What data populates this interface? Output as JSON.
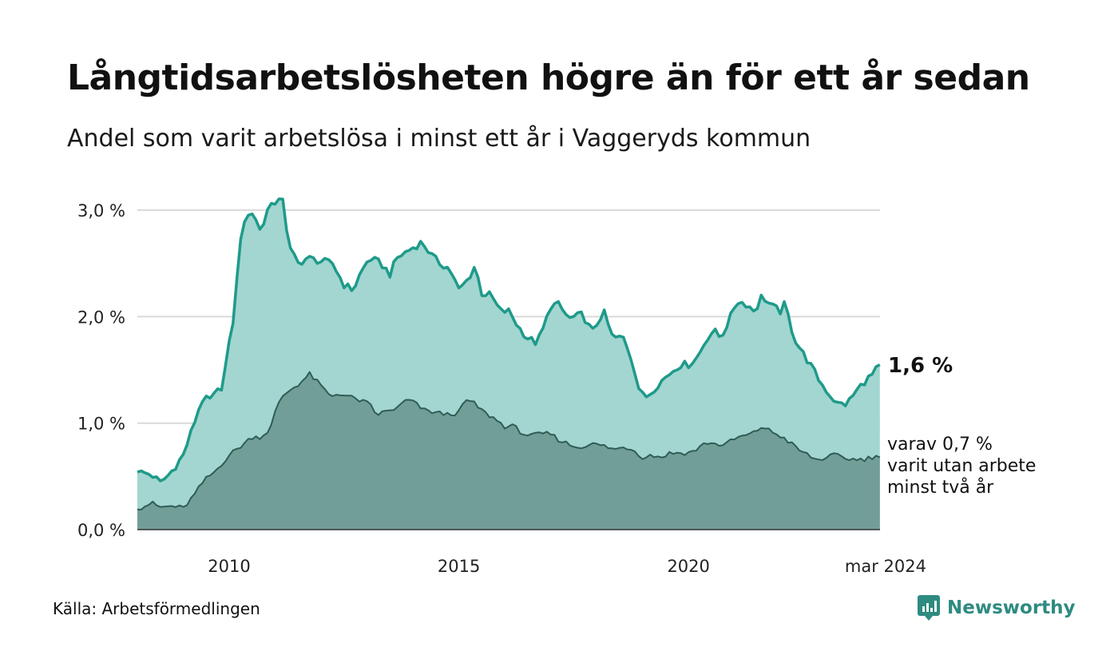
{
  "title": "Långtidsarbetslösheten högre än för ett år sedan",
  "subtitle": "Andel som varit arbetslösa i minst ett år i Vaggeryds kommun",
  "source": "Källa: Arbetsförmedlingen",
  "brand": "Newsworthy",
  "colors": {
    "primary_line": "#1f9a8a",
    "primary_fill": "#a3d6d0",
    "secondary_line": "#2f5c56",
    "secondary_fill": "#729e98",
    "grid": "#d9d9d9",
    "brand": "#2e8b80"
  },
  "chart_data": {
    "type": "area",
    "x_start": "2008-01",
    "x_end": "2024-03",
    "frequency": "monthly",
    "xlim": [
      2008.0,
      2024.17
    ],
    "ylim": [
      0,
      3.2
    ],
    "y_ticks": [
      {
        "value": 0,
        "label": "0,0 %"
      },
      {
        "value": 1,
        "label": "1,0 %"
      },
      {
        "value": 2,
        "label": "2,0 %"
      },
      {
        "value": 3,
        "label": "3,0 %"
      }
    ],
    "x_ticks": [
      {
        "value": 2010,
        "label": "2010"
      },
      {
        "value": 2015,
        "label": "2015"
      },
      {
        "value": 2020,
        "label": "2020"
      },
      {
        "value": 2024.17,
        "label": "mar 2024"
      }
    ],
    "grid": true,
    "annotations": {
      "end_value": "1,6 %",
      "note_lines": [
        "varav 0,7 %",
        "varit utan arbete",
        "minst två år"
      ]
    },
    "series": [
      {
        "name": "Minst ett år",
        "anchors": [
          [
            2008.0,
            0.54
          ],
          [
            2008.3,
            0.52
          ],
          [
            2008.5,
            0.44
          ],
          [
            2008.7,
            0.52
          ],
          [
            2009.0,
            0.7
          ],
          [
            2009.2,
            0.95
          ],
          [
            2009.4,
            1.22
          ],
          [
            2009.6,
            1.22
          ],
          [
            2009.85,
            1.35
          ],
          [
            2010.1,
            2.0
          ],
          [
            2010.25,
            2.75
          ],
          [
            2010.45,
            3.02
          ],
          [
            2010.7,
            2.8
          ],
          [
            2010.9,
            3.1
          ],
          [
            2011.05,
            3.02
          ],
          [
            2011.15,
            3.18
          ],
          [
            2011.3,
            2.65
          ],
          [
            2011.5,
            2.5
          ],
          [
            2011.7,
            2.55
          ],
          [
            2012.0,
            2.52
          ],
          [
            2012.25,
            2.5
          ],
          [
            2012.5,
            2.3
          ],
          [
            2012.7,
            2.25
          ],
          [
            2012.85,
            2.4
          ],
          [
            2013.05,
            2.55
          ],
          [
            2013.3,
            2.5
          ],
          [
            2013.5,
            2.4
          ],
          [
            2013.65,
            2.55
          ],
          [
            2014.0,
            2.65
          ],
          [
            2014.2,
            2.7
          ],
          [
            2014.45,
            2.55
          ],
          [
            2014.6,
            2.5
          ],
          [
            2014.8,
            2.45
          ],
          [
            2015.0,
            2.25
          ],
          [
            2015.2,
            2.35
          ],
          [
            2015.35,
            2.48
          ],
          [
            2015.5,
            2.22
          ],
          [
            2015.7,
            2.2
          ],
          [
            2015.9,
            2.05
          ],
          [
            2016.1,
            2.05
          ],
          [
            2016.3,
            1.9
          ],
          [
            2016.5,
            1.8
          ],
          [
            2016.7,
            1.75
          ],
          [
            2016.85,
            1.9
          ],
          [
            2017.0,
            2.1
          ],
          [
            2017.15,
            2.12
          ],
          [
            2017.4,
            1.98
          ],
          [
            2017.7,
            2.02
          ],
          [
            2017.9,
            1.85
          ],
          [
            2018.15,
            2.05
          ],
          [
            2018.35,
            1.8
          ],
          [
            2018.6,
            1.8
          ],
          [
            2018.8,
            1.55
          ],
          [
            2018.95,
            1.27
          ],
          [
            2019.1,
            1.25
          ],
          [
            2019.3,
            1.35
          ],
          [
            2019.55,
            1.45
          ],
          [
            2019.8,
            1.55
          ],
          [
            2020.0,
            1.55
          ],
          [
            2020.2,
            1.62
          ],
          [
            2020.4,
            1.8
          ],
          [
            2020.55,
            1.87
          ],
          [
            2020.7,
            1.8
          ],
          [
            2020.9,
            1.98
          ],
          [
            2021.05,
            2.15
          ],
          [
            2021.25,
            2.12
          ],
          [
            2021.45,
            2.05
          ],
          [
            2021.6,
            2.2
          ],
          [
            2021.8,
            2.1
          ],
          [
            2022.0,
            2.05
          ],
          [
            2022.1,
            2.12
          ],
          [
            2022.3,
            1.8
          ],
          [
            2022.5,
            1.65
          ],
          [
            2022.65,
            1.55
          ],
          [
            2022.85,
            1.4
          ],
          [
            2023.05,
            1.28
          ],
          [
            2023.25,
            1.18
          ],
          [
            2023.45,
            1.18
          ],
          [
            2023.65,
            1.3
          ],
          [
            2023.85,
            1.4
          ],
          [
            2024.0,
            1.45
          ],
          [
            2024.17,
            1.55
          ]
        ]
      },
      {
        "name": "Minst två år",
        "anchors": [
          [
            2008.0,
            0.19
          ],
          [
            2008.3,
            0.25
          ],
          [
            2008.5,
            0.21
          ],
          [
            2008.8,
            0.22
          ],
          [
            2009.0,
            0.2
          ],
          [
            2009.25,
            0.33
          ],
          [
            2009.45,
            0.46
          ],
          [
            2009.7,
            0.55
          ],
          [
            2010.0,
            0.7
          ],
          [
            2010.3,
            0.8
          ],
          [
            2010.5,
            0.87
          ],
          [
            2010.7,
            0.87
          ],
          [
            2010.9,
            0.95
          ],
          [
            2011.0,
            1.1
          ],
          [
            2011.15,
            1.25
          ],
          [
            2011.35,
            1.32
          ],
          [
            2011.55,
            1.38
          ],
          [
            2011.75,
            1.46
          ],
          [
            2012.0,
            1.35
          ],
          [
            2012.2,
            1.25
          ],
          [
            2012.4,
            1.28
          ],
          [
            2012.6,
            1.25
          ],
          [
            2012.8,
            1.22
          ],
          [
            2013.05,
            1.18
          ],
          [
            2013.2,
            1.08
          ],
          [
            2013.5,
            1.12
          ],
          [
            2013.7,
            1.15
          ],
          [
            2013.85,
            1.22
          ],
          [
            2014.0,
            1.2
          ],
          [
            2014.25,
            1.12
          ],
          [
            2014.5,
            1.1
          ],
          [
            2014.75,
            1.08
          ],
          [
            2015.0,
            1.1
          ],
          [
            2015.15,
            1.22
          ],
          [
            2015.35,
            1.18
          ],
          [
            2015.55,
            1.1
          ],
          [
            2015.75,
            1.05
          ],
          [
            2016.0,
            0.97
          ],
          [
            2016.2,
            0.97
          ],
          [
            2016.4,
            0.9
          ],
          [
            2016.6,
            0.88
          ],
          [
            2016.8,
            0.9
          ],
          [
            2017.0,
            0.9
          ],
          [
            2017.15,
            0.85
          ],
          [
            2017.4,
            0.8
          ],
          [
            2017.6,
            0.77
          ],
          [
            2017.8,
            0.8
          ],
          [
            2018.0,
            0.8
          ],
          [
            2018.2,
            0.78
          ],
          [
            2018.4,
            0.75
          ],
          [
            2018.6,
            0.78
          ],
          [
            2018.8,
            0.75
          ],
          [
            2019.0,
            0.68
          ],
          [
            2019.2,
            0.7
          ],
          [
            2019.4,
            0.68
          ],
          [
            2019.6,
            0.72
          ],
          [
            2019.8,
            0.72
          ],
          [
            2020.0,
            0.72
          ],
          [
            2020.2,
            0.76
          ],
          [
            2020.4,
            0.82
          ],
          [
            2020.6,
            0.8
          ],
          [
            2020.8,
            0.8
          ],
          [
            2021.0,
            0.85
          ],
          [
            2021.2,
            0.88
          ],
          [
            2021.4,
            0.9
          ],
          [
            2021.6,
            0.97
          ],
          [
            2021.8,
            0.92
          ],
          [
            2022.0,
            0.88
          ],
          [
            2022.2,
            0.82
          ],
          [
            2022.4,
            0.75
          ],
          [
            2022.6,
            0.7
          ],
          [
            2022.8,
            0.65
          ],
          [
            2023.0,
            0.68
          ],
          [
            2023.2,
            0.7
          ],
          [
            2023.4,
            0.67
          ],
          [
            2023.6,
            0.66
          ],
          [
            2023.8,
            0.66
          ],
          [
            2024.0,
            0.68
          ],
          [
            2024.17,
            0.68
          ]
        ]
      }
    ]
  }
}
